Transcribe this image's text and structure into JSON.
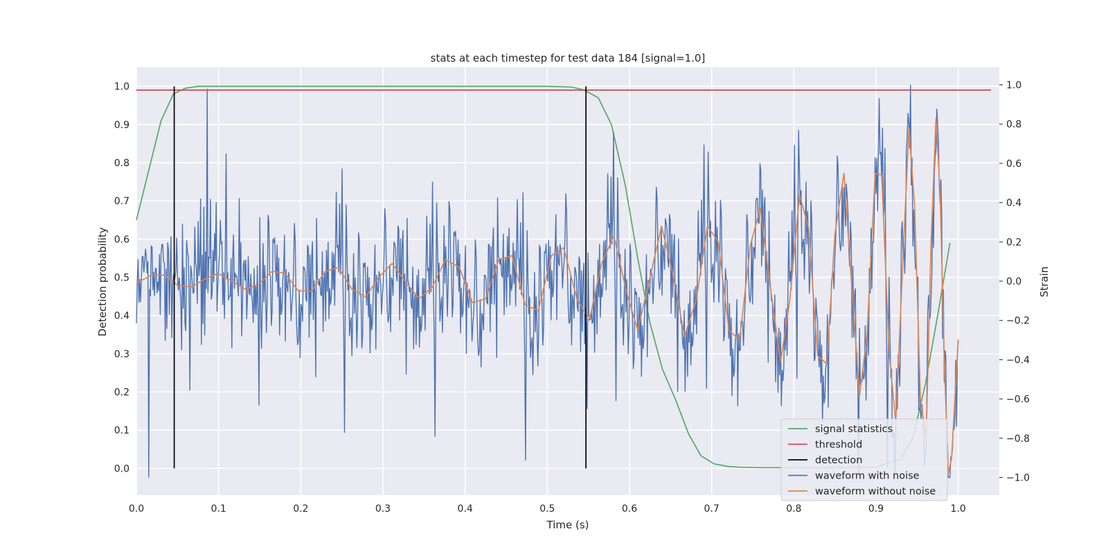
{
  "chart_data": {
    "type": "line",
    "title": "stats at each timestep for test data 184 [signal=1.0]",
    "xlabel": "Time (s)",
    "ylabel_left": "Detection probability",
    "ylabel_right": "Strain",
    "xlim": [
      0.0,
      1.05
    ],
    "ylim_left": [
      -0.07,
      1.05
    ],
    "ylim_right": [
      -1.09,
      1.09
    ],
    "x_ticks": [
      0.0,
      0.1,
      0.2,
      0.3,
      0.4,
      0.5,
      0.6,
      0.7,
      0.8,
      0.9,
      1.0
    ],
    "x_tick_labels": [
      "0.0",
      "0.1",
      "0.2",
      "0.3",
      "0.4",
      "0.5",
      "0.6",
      "0.7",
      "0.8",
      "0.9",
      "1.0"
    ],
    "y_left_ticks": [
      0.0,
      0.1,
      0.2,
      0.3,
      0.4,
      0.5,
      0.6,
      0.7,
      0.8,
      0.9,
      1.0
    ],
    "y_left_tick_labels": [
      "0.0",
      "0.1",
      "0.2",
      "0.3",
      "0.4",
      "0.5",
      "0.6",
      "0.7",
      "0.8",
      "0.9",
      "1.0"
    ],
    "y_right_ticks": [
      -1.0,
      -0.8,
      -0.6,
      -0.4,
      -0.2,
      0.0,
      0.2,
      0.4,
      0.6,
      0.8,
      1.0
    ],
    "y_right_tick_labels": [
      "−1.0",
      "−0.8",
      "−0.6",
      "−0.4",
      "−0.2",
      "0.0",
      "0.2",
      "0.4",
      "0.6",
      "0.8",
      "1.0"
    ],
    "grid": true,
    "legend_position": "lower-right",
    "series": [
      {
        "name": "signal statistics",
        "axis": "left",
        "color": "#55a868",
        "x": [
          0.0,
          0.015,
          0.03,
          0.045,
          0.06,
          0.075,
          0.1,
          0.2,
          0.3,
          0.4,
          0.5,
          0.53,
          0.545,
          0.562,
          0.578,
          0.595,
          0.61,
          0.625,
          0.64,
          0.656,
          0.672,
          0.687,
          0.703,
          0.72,
          0.735,
          0.76,
          0.8,
          0.85,
          0.9,
          0.93,
          0.945,
          0.96,
          0.975,
          0.99
        ],
        "y": [
          0.65,
          0.78,
          0.91,
          0.98,
          0.995,
          1.0,
          1.0,
          1.0,
          1.0,
          1.0,
          1.0,
          0.998,
          0.99,
          0.97,
          0.9,
          0.74,
          0.55,
          0.38,
          0.26,
          0.18,
          0.09,
          0.033,
          0.012,
          0.005,
          0.003,
          0.002,
          0.002,
          0.002,
          0.003,
          0.025,
          0.08,
          0.22,
          0.4,
          0.59
        ]
      },
      {
        "name": "threshold",
        "axis": "left",
        "color": "#c44e52",
        "x": [
          0.0,
          1.04
        ],
        "y": [
          0.99,
          0.99
        ]
      },
      {
        "name": "detection",
        "axis": "left",
        "color": "#000000",
        "x": [
          0.046,
          0.547
        ],
        "y_range": [
          0.0,
          1.0
        ]
      },
      {
        "name": "waveform with noise",
        "axis": "right",
        "color": "#4c72b0",
        "x_range": [
          0.0,
          1.0
        ],
        "points": 1000,
        "noise_std": 0.2,
        "extremes": [
          {
            "x": 0.015,
            "y": -1.0
          },
          {
            "x": 0.086,
            "y": 0.98
          },
          {
            "x": 0.942,
            "y": 1.0
          },
          {
            "x": 0.99,
            "y": -1.0
          }
        ]
      },
      {
        "name": "waveform without noise",
        "axis": "right",
        "color": "#dd8452",
        "x": [
          0.0,
          0.018,
          0.034,
          0.05,
          0.067,
          0.083,
          0.099,
          0.116,
          0.132,
          0.148,
          0.165,
          0.181,
          0.197,
          0.213,
          0.23,
          0.246,
          0.262,
          0.279,
          0.295,
          0.311,
          0.327,
          0.344,
          0.36,
          0.376,
          0.393,
          0.409,
          0.425,
          0.441,
          0.457,
          0.473,
          0.489,
          0.505,
          0.52,
          0.536,
          0.551,
          0.566,
          0.581,
          0.596,
          0.61,
          0.625,
          0.639,
          0.653,
          0.667,
          0.681,
          0.695,
          0.708,
          0.721,
          0.734,
          0.747,
          0.759,
          0.772,
          0.784,
          0.795,
          0.807,
          0.818,
          0.829,
          0.84,
          0.85,
          0.861,
          0.87,
          0.88,
          0.889,
          0.899,
          0.907,
          0.916,
          0.924,
          0.932,
          0.94,
          0.947,
          0.954,
          0.961,
          0.967,
          0.973,
          0.978,
          0.983,
          0.988,
          0.992,
          0.996,
          1.0
        ],
        "y": [
          -0.01,
          0.03,
          0.03,
          -0.02,
          -0.03,
          0.01,
          0.04,
          0.0,
          -0.04,
          -0.02,
          0.05,
          0.04,
          -0.05,
          -0.05,
          0.05,
          0.07,
          -0.04,
          -0.08,
          0.02,
          0.09,
          0.0,
          -0.09,
          -0.03,
          0.11,
          0.07,
          -0.11,
          -0.09,
          0.11,
          0.13,
          -0.12,
          -0.15,
          0.13,
          0.17,
          -0.09,
          -0.2,
          0.09,
          0.23,
          -0.05,
          -0.25,
          0.02,
          0.28,
          0.03,
          -0.28,
          -0.1,
          0.28,
          0.2,
          -0.25,
          -0.3,
          0.18,
          0.37,
          -0.05,
          -0.41,
          -0.1,
          0.44,
          0.27,
          -0.38,
          -0.42,
          0.24,
          0.55,
          0.0,
          -0.58,
          -0.28,
          0.55,
          0.54,
          -0.37,
          -0.72,
          0.04,
          0.78,
          0.38,
          -0.6,
          -0.8,
          0.2,
          0.83,
          0.45,
          -0.4,
          -0.98,
          -0.9,
          -0.6,
          -0.3
        ]
      }
    ]
  }
}
